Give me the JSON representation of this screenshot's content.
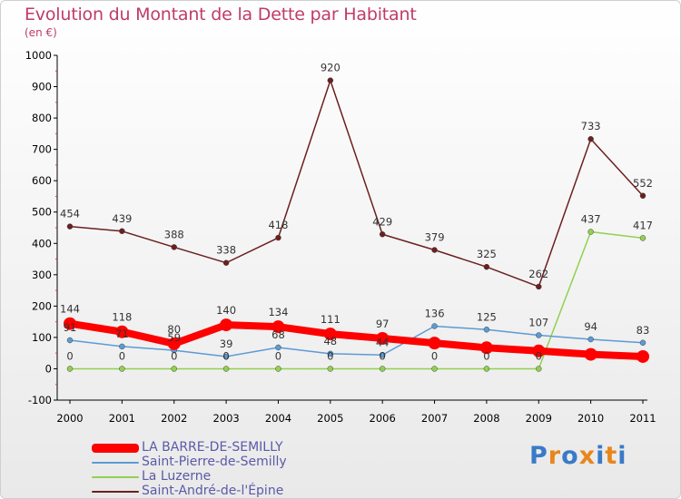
{
  "chart_data": {
    "type": "line",
    "title": "Evolution du Montant de la Dette par Habitant",
    "subtitle": "(en €)",
    "categories": [
      "2000",
      "2001",
      "2002",
      "2003",
      "2004",
      "2005",
      "2006",
      "2007",
      "2008",
      "2009",
      "2010",
      "2011"
    ],
    "ylim": [
      -100,
      1000
    ],
    "yticks": [
      "-100",
      "0",
      "100",
      "200",
      "300",
      "400",
      "500",
      "600",
      "700",
      "800",
      "900",
      "1000"
    ],
    "grid": false,
    "legend_position": "bottom-left",
    "series": [
      {
        "name": "LA BARRE-DE-SEMILLY",
        "color": "#ff0000",
        "values": [
          144,
          118,
          80,
          140,
          134,
          111,
          97,
          82,
          67,
          57,
          46,
          39
        ],
        "labels": [
          "144",
          "118",
          "80",
          "140",
          "134",
          "111",
          "97",
          "",
          "",
          "",
          "",
          ""
        ]
      },
      {
        "name": "Saint-Pierre-de-Semilly",
        "color": "#5b9bd5",
        "values": [
          91,
          71,
          59,
          39,
          68,
          48,
          44,
          136,
          125,
          107,
          94,
          83
        ],
        "labels": [
          "91",
          "71",
          "59",
          "39",
          "68",
          "48",
          "44",
          "136",
          "125",
          "107",
          "94",
          "83"
        ]
      },
      {
        "name": "La Luzerne",
        "color": "#92d050",
        "values": [
          0,
          0,
          0,
          0,
          0,
          0,
          0,
          0,
          0,
          0,
          437,
          417
        ],
        "labels": [
          "0",
          "0",
          "0",
          "0",
          "0",
          "0",
          "0",
          "0",
          "0",
          "0",
          "437",
          "417"
        ]
      },
      {
        "name": "Saint-André-de-l'Épine",
        "color": "#6b1f1f",
        "values": [
          454,
          439,
          388,
          338,
          418,
          920,
          429,
          379,
          325,
          262,
          733,
          552
        ],
        "labels": [
          "454",
          "439",
          "388",
          "338",
          "418",
          "920",
          "429",
          "379",
          "325",
          "262",
          "733",
          "552"
        ]
      }
    ]
  },
  "brand": {
    "text": "Proxiti",
    "letters": [
      "P",
      "r",
      "o",
      "x",
      "i",
      "t",
      "i"
    ],
    "colors": [
      "#3a7ac8",
      "#e8861c",
      "#3a7ac8",
      "#e8861c",
      "#3a7ac8",
      "#e8861c",
      "#3a7ac8"
    ]
  }
}
